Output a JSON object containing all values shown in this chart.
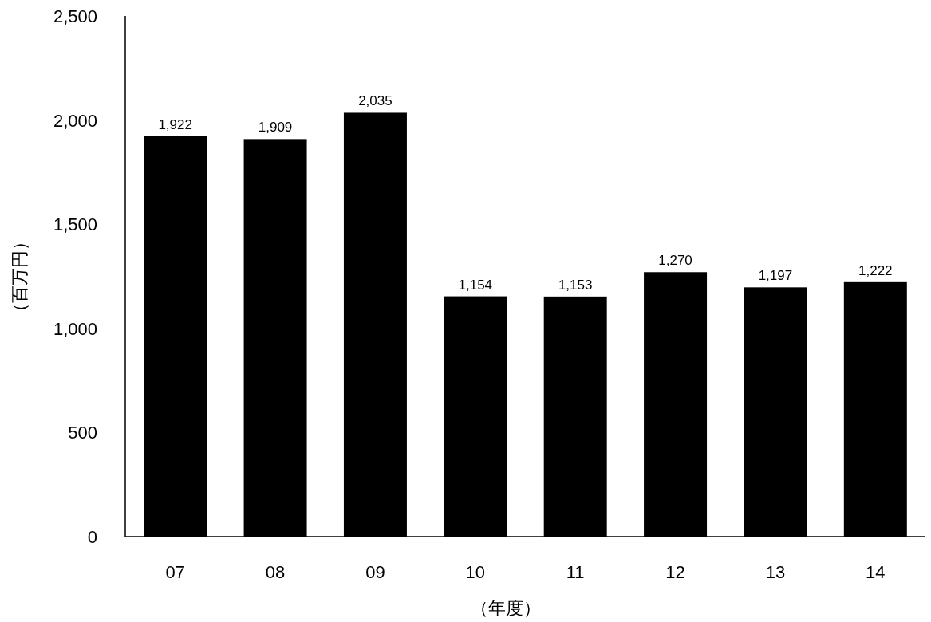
{
  "chart_data": {
    "type": "bar",
    "xlabel": "（年度）",
    "ylabel": "（百万円）",
    "categories": [
      "07",
      "08",
      "09",
      "10",
      "11",
      "12",
      "13",
      "14"
    ],
    "values": [
      1922,
      1909,
      2035,
      1154,
      1153,
      1270,
      1197,
      1222
    ],
    "value_labels": [
      "1,922",
      "1,909",
      "2,035",
      "1,154",
      "1,153",
      "1,270",
      "1,197",
      "1,222"
    ],
    "color": "#000000",
    "ylim": [
      0,
      2500
    ],
    "yticks": [
      0,
      500,
      {
        "value": 1000,
        "label": "1,000"
      },
      {
        "value": 1500,
        "label": "1,500"
      },
      {
        "value": 2000,
        "label": "2,000"
      },
      {
        "value": 2500,
        "label": "2,500"
      }
    ]
  }
}
